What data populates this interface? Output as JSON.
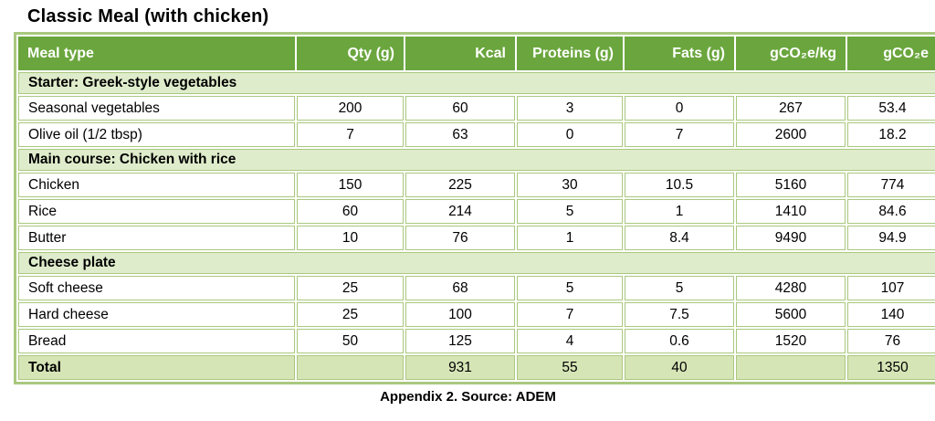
{
  "title": "Classic Meal (with chicken)",
  "caption": "Appendix 2. Source: ADEM",
  "colors": {
    "header_bg": "#6aa63d",
    "header_text": "#ffffff",
    "section_bg": "#dfeccb",
    "total_bg": "#d6e5b6",
    "grid": "#a9c87e",
    "cell_bg": "#ffffff",
    "text": "#000000"
  },
  "table": {
    "columns": [
      "Meal type",
      "Qty (g)",
      "Kcal",
      "Proteins (g)",
      "Fats (g)",
      "gCO₂e/kg",
      "gCO₂e"
    ],
    "rows": [
      {
        "type": "section",
        "label": "Starter: Greek-style vegetables"
      },
      {
        "type": "data",
        "cells": [
          "Seasonal vegetables",
          "200",
          "60",
          "3",
          "0",
          "267",
          "53.4"
        ]
      },
      {
        "type": "data",
        "cells": [
          "Olive oil (1/2 tbsp)",
          "7",
          "63",
          "0",
          "7",
          "2600",
          "18.2"
        ]
      },
      {
        "type": "section",
        "label": "Main course: Chicken with rice"
      },
      {
        "type": "data",
        "cells": [
          "Chicken",
          "150",
          "225",
          "30",
          "10.5",
          "5160",
          "774"
        ]
      },
      {
        "type": "data",
        "cells": [
          "Rice",
          "60",
          "214",
          "5",
          "1",
          "1410",
          "84.6"
        ]
      },
      {
        "type": "data",
        "cells": [
          "Butter",
          "10",
          "76",
          "1",
          "8.4",
          "9490",
          "94.9"
        ]
      },
      {
        "type": "section",
        "label": "Cheese plate"
      },
      {
        "type": "data",
        "cells": [
          "Soft cheese",
          "25",
          "68",
          "5",
          "5",
          "4280",
          "107"
        ]
      },
      {
        "type": "data",
        "cells": [
          "Hard cheese",
          "25",
          "100",
          "7",
          "7.5",
          "5600",
          "140"
        ]
      },
      {
        "type": "data",
        "cells": [
          "Bread",
          "50",
          "125",
          "4",
          "0.6",
          "1520",
          "76"
        ]
      },
      {
        "type": "total",
        "cells": [
          "Total",
          "",
          "931",
          "55",
          "40",
          "",
          "1350"
        ]
      }
    ]
  }
}
